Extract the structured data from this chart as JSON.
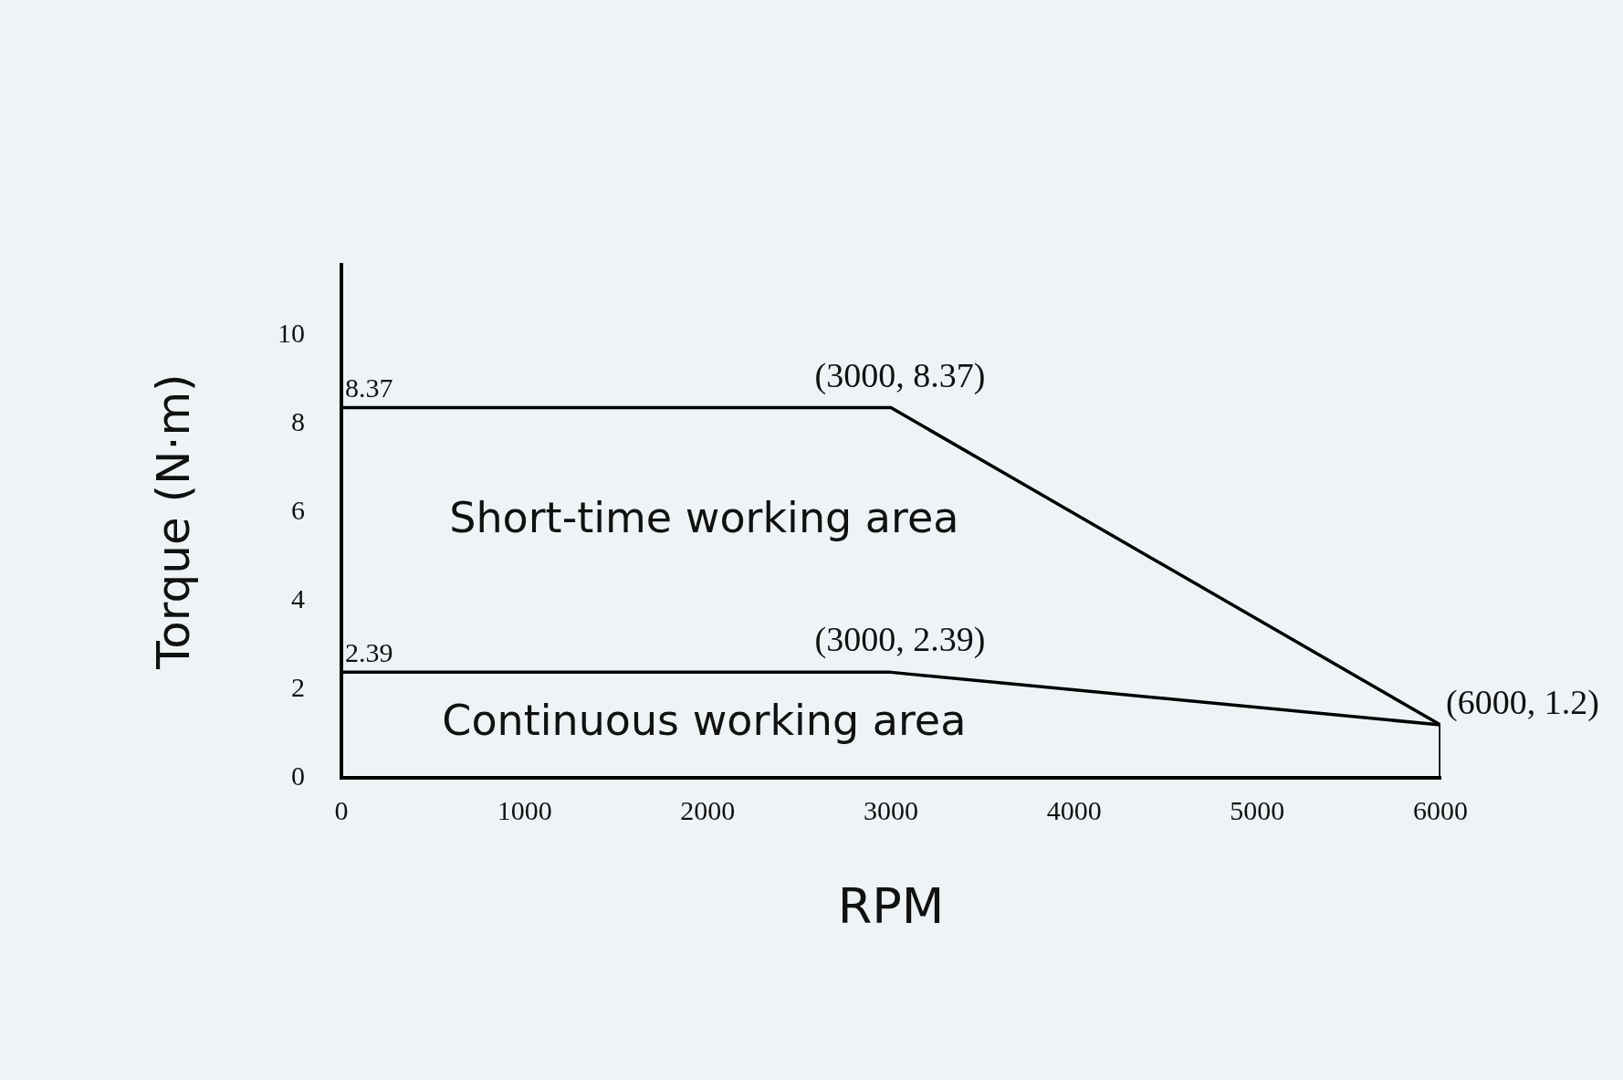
{
  "chart_data": {
    "type": "line",
    "xlabel": "RPM",
    "ylabel": "Torque (N·m)",
    "xlim": [
      0,
      6000
    ],
    "xticks": [
      0,
      1000,
      2000,
      3000,
      4000,
      5000,
      6000
    ],
    "ylim": [
      0,
      11.6
    ],
    "yticks": [
      0,
      2,
      4,
      6,
      8,
      10
    ],
    "series": [
      {
        "color": "#000000",
        "x": [
          0,
          3000,
          6000
        ],
        "values": [
          8.37,
          8.37,
          1.2
        ]
      },
      {
        "color": "#000000",
        "x": [
          0,
          3000,
          6000,
          6000
        ],
        "values": [
          2.39,
          2.39,
          1.2,
          0
        ]
      }
    ],
    "annotations": [
      {
        "text": "8.37",
        "x": 0,
        "y": 8.37
      },
      {
        "text": "(3000, 8.37)",
        "x": 3000,
        "y": 8.37
      },
      {
        "text": "2.39",
        "x": 0,
        "y": 2.39
      },
      {
        "text": "(3000, 2.39)",
        "x": 3000,
        "y": 2.39
      },
      {
        "text": "(6000, 1.2)",
        "x": 6000,
        "y": 1.2
      },
      "Short-time working area",
      "Continuous working area"
    ],
    "grid": false,
    "legend": false,
    "marker": "none",
    "line_style": "solid"
  }
}
